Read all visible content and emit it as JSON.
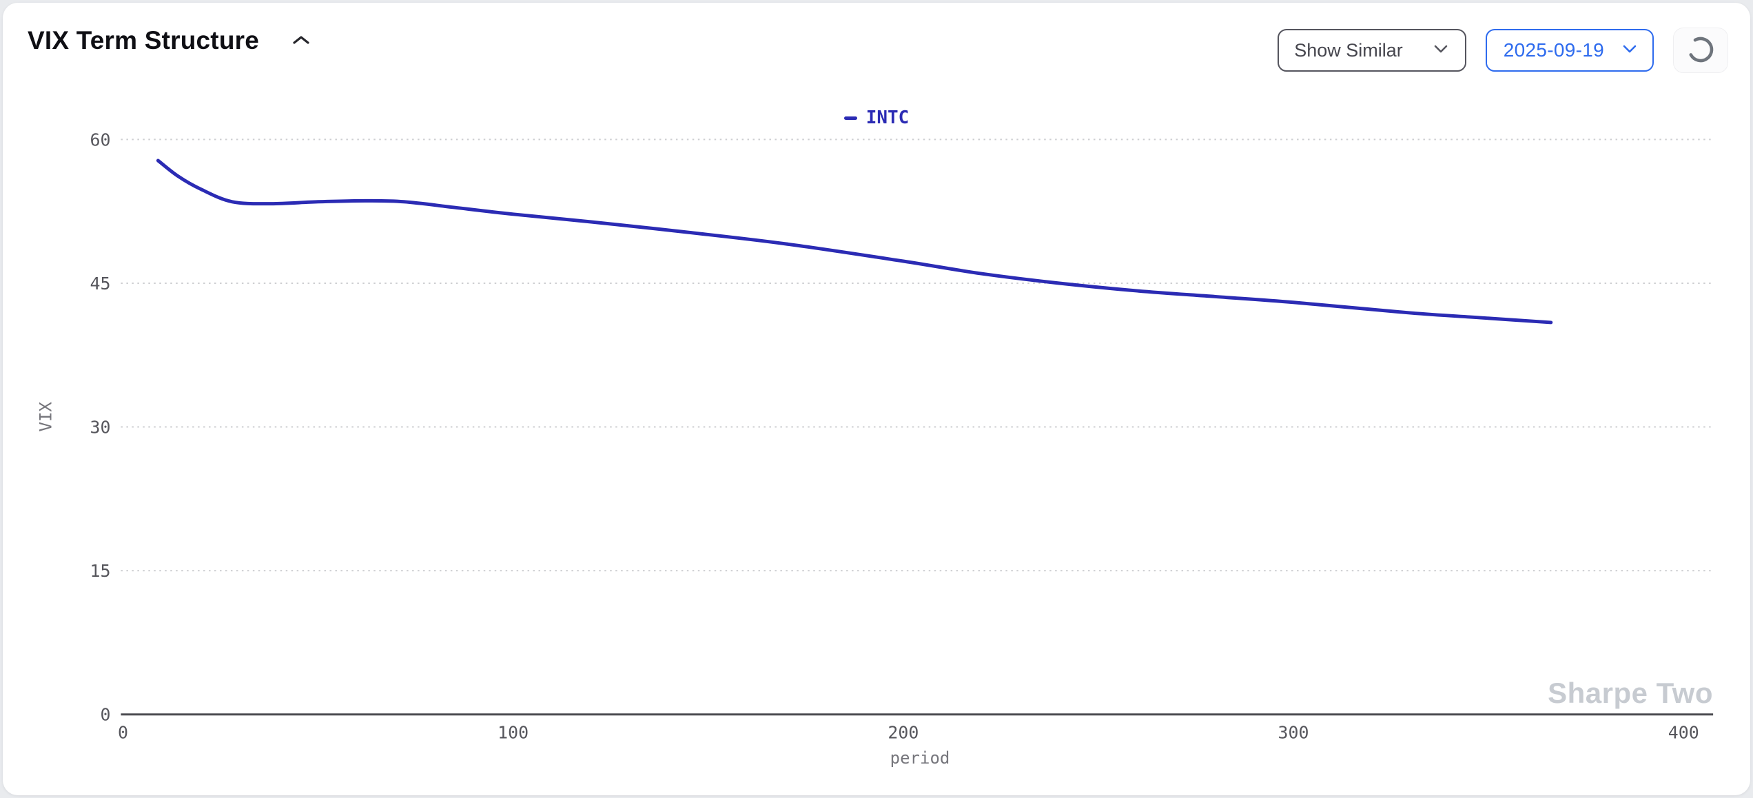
{
  "header": {
    "title": "VIX Term Structure",
    "collapse_icon": "chevron-up"
  },
  "controls": {
    "show_similar": {
      "label": "Show Similar",
      "icon": "chevron-down"
    },
    "date_select": {
      "value": "2025-09-19",
      "icon": "chevron-down"
    },
    "refresh": {
      "icon": "loading-spinner"
    }
  },
  "watermark": "Sharpe Two",
  "colors": {
    "series_blue": "#2b2bb4",
    "accent_blue": "#2e6bee",
    "axis_gray": "#4b4b50",
    "tick_gray": "#56565c",
    "grid_gray": "#cdced1",
    "watermark_gray": "#c7cbd1"
  },
  "chart_data": {
    "type": "line",
    "title": "VIX Term Structure",
    "xlabel": "period",
    "ylabel": "VIX",
    "xlim": [
      0,
      400
    ],
    "ylim": [
      0,
      60
    ],
    "x_ticks": [
      0,
      100,
      200,
      300,
      400
    ],
    "y_ticks": [
      0,
      15,
      30,
      45,
      60
    ],
    "grid": "horizontal-dotted",
    "legend_position": "top-center",
    "series": [
      {
        "name": "INTC",
        "color": "#2b2bb4",
        "points": [
          [
            9,
            57.8
          ],
          [
            14,
            56.2
          ],
          [
            20,
            54.8
          ],
          [
            28,
            53.5
          ],
          [
            38,
            53.3
          ],
          [
            50,
            53.5
          ],
          [
            62,
            53.6
          ],
          [
            72,
            53.5
          ],
          [
            85,
            52.9
          ],
          [
            100,
            52.2
          ],
          [
            120,
            51.4
          ],
          [
            145,
            50.3
          ],
          [
            170,
            49.1
          ],
          [
            200,
            47.3
          ],
          [
            220,
            46.0
          ],
          [
            240,
            45.0
          ],
          [
            260,
            44.2
          ],
          [
            280,
            43.6
          ],
          [
            300,
            43.0
          ],
          [
            330,
            41.9
          ],
          [
            348,
            41.4
          ],
          [
            366,
            40.9
          ]
        ]
      }
    ]
  }
}
